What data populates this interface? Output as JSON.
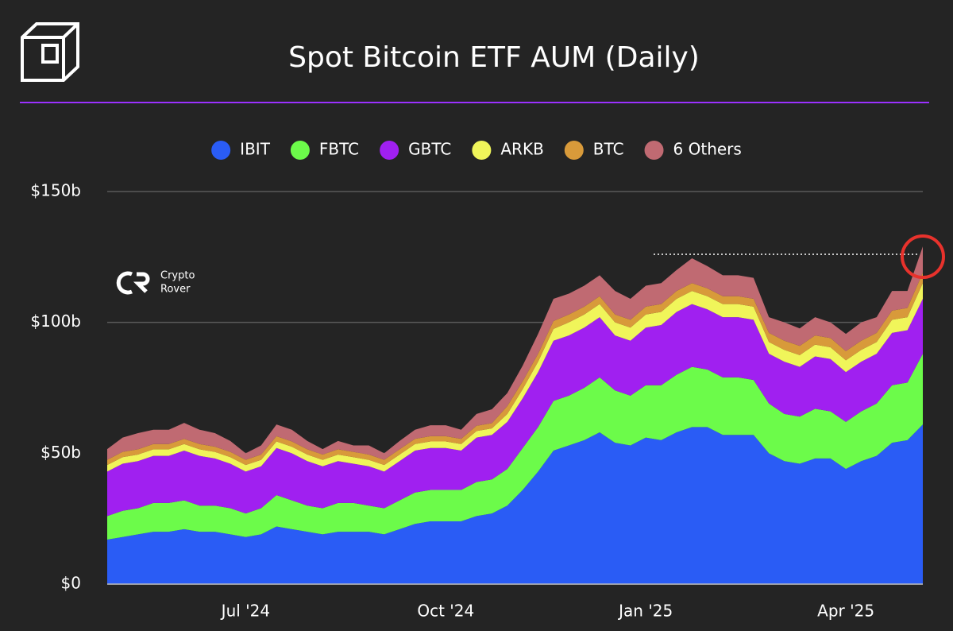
{
  "chart_data": {
    "type": "stacked_area",
    "title": "Spot Bitcoin ETF AUM (Daily)",
    "categories": [
      null,
      null,
      null,
      null,
      null,
      null,
      null,
      null,
      null,
      "Jul '24",
      null,
      null,
      null,
      null,
      null,
      null,
      null,
      null,
      null,
      null,
      null,
      null,
      "Oct '24",
      null,
      null,
      null,
      null,
      null,
      null,
      null,
      null,
      null,
      null,
      null,
      null,
      "Jan '25",
      null,
      null,
      null,
      null,
      null,
      null,
      null,
      null,
      null,
      null,
      null,
      null,
      "Apr '25",
      null,
      null,
      null,
      null,
      null
    ],
    "series": [
      {
        "name": "IBIT",
        "color": "#2a5cf5",
        "values": [
          17,
          18,
          19,
          20,
          20,
          21,
          20,
          20,
          19,
          18,
          19,
          22,
          21,
          20,
          19,
          20,
          20,
          20,
          19,
          21,
          23,
          24,
          24,
          24,
          26,
          27,
          30,
          36,
          43,
          51,
          53,
          55,
          58,
          54,
          53,
          56,
          55,
          58,
          60,
          60,
          57,
          57,
          57,
          50,
          47,
          46,
          48,
          48,
          44,
          47,
          49,
          54,
          55,
          61
        ]
      },
      {
        "name": "FBTC",
        "color": "#6cfb4a",
        "values": [
          9,
          10,
          10,
          11,
          11,
          11,
          10,
          10,
          10,
          9,
          10,
          12,
          11,
          10,
          10,
          11,
          11,
          10,
          10,
          11,
          12,
          12,
          12,
          12,
          13,
          13,
          14,
          16,
          17,
          19,
          19,
          20,
          21,
          20,
          19,
          20,
          21,
          22,
          23,
          22,
          22,
          22,
          21,
          19,
          18,
          18,
          19,
          18,
          18,
          19,
          20,
          22,
          22,
          27
        ]
      },
      {
        "name": "GBTC",
        "color": "#a020f0",
        "values": [
          17,
          18,
          18,
          18,
          18,
          19,
          19,
          18,
          17,
          16,
          16,
          18,
          18,
          17,
          16,
          16,
          15,
          15,
          14,
          15,
          16,
          16,
          16,
          15,
          17,
          17,
          18,
          19,
          21,
          23,
          23,
          23,
          23,
          21,
          21,
          22,
          23,
          24,
          24,
          23,
          23,
          23,
          23,
          19,
          20,
          19,
          20,
          20,
          19,
          19,
          19,
          20,
          20,
          21
        ]
      },
      {
        "name": "ARKB",
        "color": "#f0f55a",
        "values": [
          2.5,
          2.5,
          2.5,
          2.5,
          2.5,
          2.5,
          2.5,
          2.5,
          2.5,
          2.5,
          2.5,
          2.5,
          2.5,
          2.5,
          2.5,
          2.5,
          2.5,
          2.5,
          2.5,
          2.5,
          2.5,
          2.5,
          2.5,
          2.5,
          2.5,
          2.5,
          3,
          3.5,
          4,
          4.5,
          5,
          5,
          5,
          5,
          5,
          5,
          5,
          5,
          5,
          5,
          5,
          5,
          5,
          4.5,
          4.5,
          4.5,
          4.5,
          4.5,
          4.5,
          4.5,
          4.5,
          5,
          5,
          6
        ]
      },
      {
        "name": "BTC",
        "color": "#d89a3a",
        "values": [
          2,
          2,
          2,
          2,
          2,
          2,
          2,
          2,
          2,
          2,
          2,
          2,
          2,
          2,
          2,
          2,
          2,
          2,
          2,
          2,
          2,
          2,
          2,
          2,
          2,
          2,
          3,
          3,
          3,
          3,
          3,
          3,
          3,
          3,
          3,
          3,
          3,
          3,
          3,
          3,
          3,
          3,
          3,
          3.5,
          3.5,
          3.5,
          3.5,
          3.5,
          3.5,
          3.5,
          3.5,
          3.5,
          3.5,
          4
        ]
      },
      {
        "name": "6 Others",
        "color": "#c06a72",
        "values": [
          4.1,
          5.5,
          6.2,
          5.5,
          5.5,
          6.1,
          5.5,
          5.2,
          4.2,
          2.5,
          3.5,
          4.5,
          4.5,
          3.2,
          2.1,
          3.2,
          2.5,
          3.5,
          2.5,
          3.2,
          3.5,
          4.2,
          4.2,
          3.5,
          4.5,
          5.3,
          5,
          6,
          7.6,
          8.5,
          8,
          8,
          8,
          9,
          8,
          8,
          8,
          8,
          9.5,
          8.5,
          8,
          8,
          8,
          6,
          7,
          6.7,
          7,
          6,
          6.6,
          7,
          6,
          7.5,
          6.5,
          10
        ]
      }
    ],
    "ylim": [
      0,
      150
    ],
    "yticks": [
      {
        "value": 0,
        "label": "$0"
      },
      {
        "value": 50,
        "label": "$50b"
      },
      {
        "value": 100,
        "label": "$100b"
      },
      {
        "value": 150,
        "label": "$150b"
      }
    ],
    "grid": true,
    "legend": "top",
    "ath_line": 126
  },
  "watermark": [
    "Crypto",
    "Rover"
  ]
}
